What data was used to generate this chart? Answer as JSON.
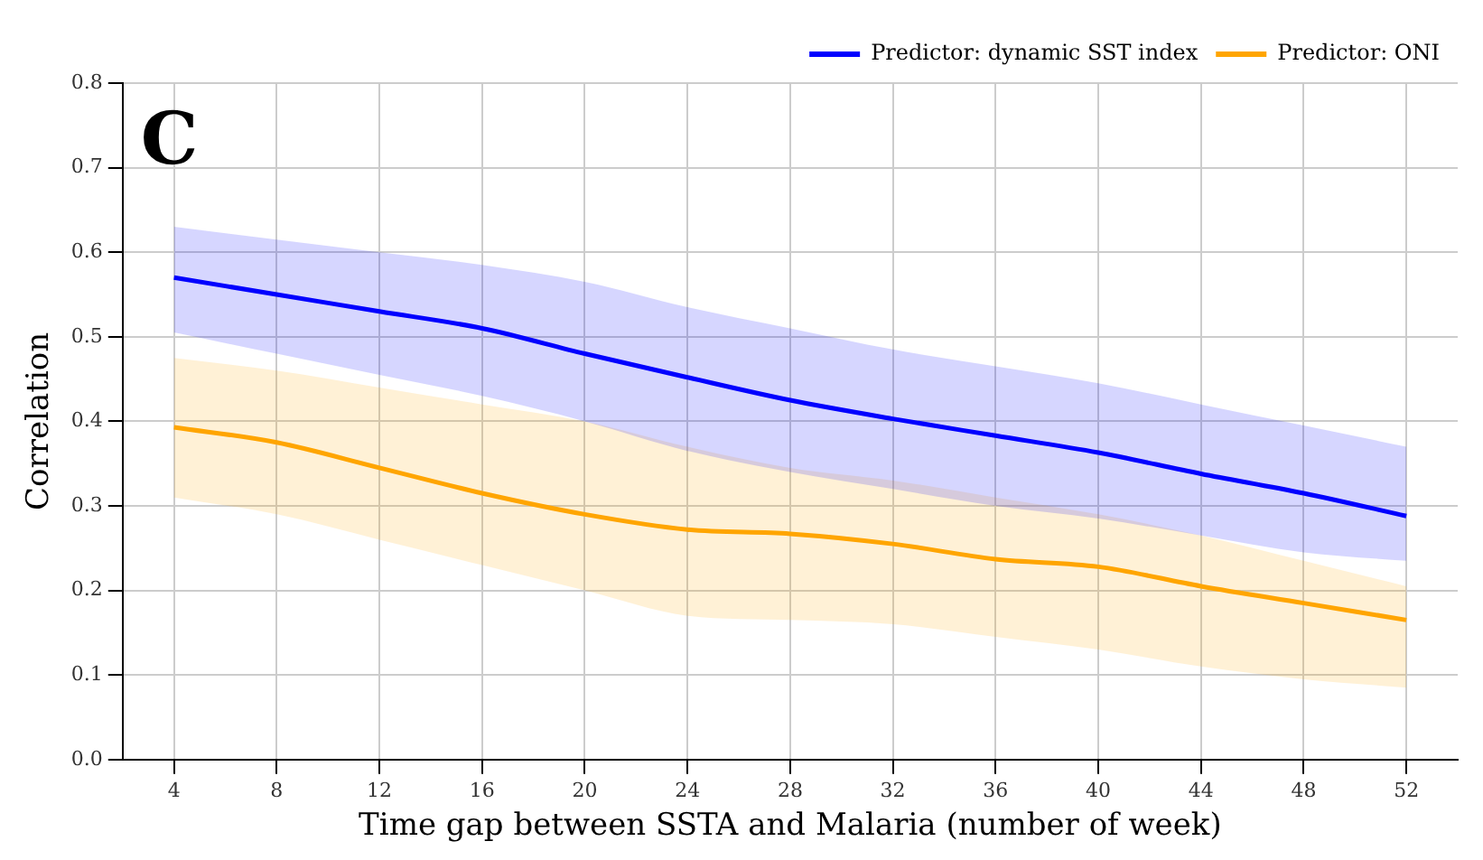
{
  "chart_data": {
    "type": "line",
    "xlabel": "Time gap between SSTA and Malaria (number of week)",
    "ylabel": "Correlation",
    "annotations": [
      "C"
    ],
    "x": [
      4,
      8,
      12,
      16,
      20,
      24,
      28,
      32,
      36,
      40,
      44,
      48,
      52
    ],
    "xlim": [
      2,
      54
    ],
    "xticks": [
      4,
      8,
      12,
      16,
      20,
      24,
      28,
      32,
      36,
      40,
      44,
      48,
      52
    ],
    "ylim": [
      0,
      0.8
    ],
    "yticks": [
      {
        "value": 0,
        "label": "0.0"
      },
      {
        "value": 0.1,
        "label": "0.1"
      },
      {
        "value": 0.2,
        "label": "0.2"
      },
      {
        "value": 0.3,
        "label": "0.3"
      },
      {
        "value": 0.4,
        "label": "0.4"
      },
      {
        "value": 0.5,
        "label": "0.5"
      },
      {
        "value": 0.6,
        "label": "0.6"
      },
      {
        "value": 0.7,
        "label": "0.7"
      },
      {
        "value": 0.8,
        "label": "0.8"
      }
    ],
    "grid": true,
    "legend": "top right",
    "marker": "none",
    "line_style": "solid",
    "series": [
      {
        "name": "Predictor: dynamic SST index",
        "color": "#0000ff",
        "values": [
          0.57,
          0.55,
          0.53,
          0.51,
          0.48,
          0.452,
          0.425,
          0.403,
          0.383,
          0.363,
          0.338,
          0.315,
          0.288
        ],
        "lower": [
          0.505,
          0.48,
          0.455,
          0.43,
          0.4,
          0.365,
          0.34,
          0.32,
          0.3,
          0.285,
          0.265,
          0.245,
          0.235
        ],
        "upper": [
          0.63,
          0.615,
          0.6,
          0.585,
          0.565,
          0.535,
          0.51,
          0.485,
          0.465,
          0.445,
          0.42,
          0.395,
          0.37
        ]
      },
      {
        "name": "Predictor: ONI",
        "color": "#ffa500",
        "values": [
          0.393,
          0.375,
          0.345,
          0.315,
          0.29,
          0.272,
          0.267,
          0.255,
          0.237,
          0.228,
          0.205,
          0.185,
          0.165
        ],
        "lower": [
          0.31,
          0.29,
          0.26,
          0.23,
          0.2,
          0.17,
          0.165,
          0.16,
          0.145,
          0.13,
          0.11,
          0.095,
          0.085
        ],
        "upper": [
          0.475,
          0.46,
          0.44,
          0.42,
          0.4,
          0.37,
          0.345,
          0.33,
          0.31,
          0.29,
          0.265,
          0.235,
          0.205
        ]
      }
    ]
  }
}
